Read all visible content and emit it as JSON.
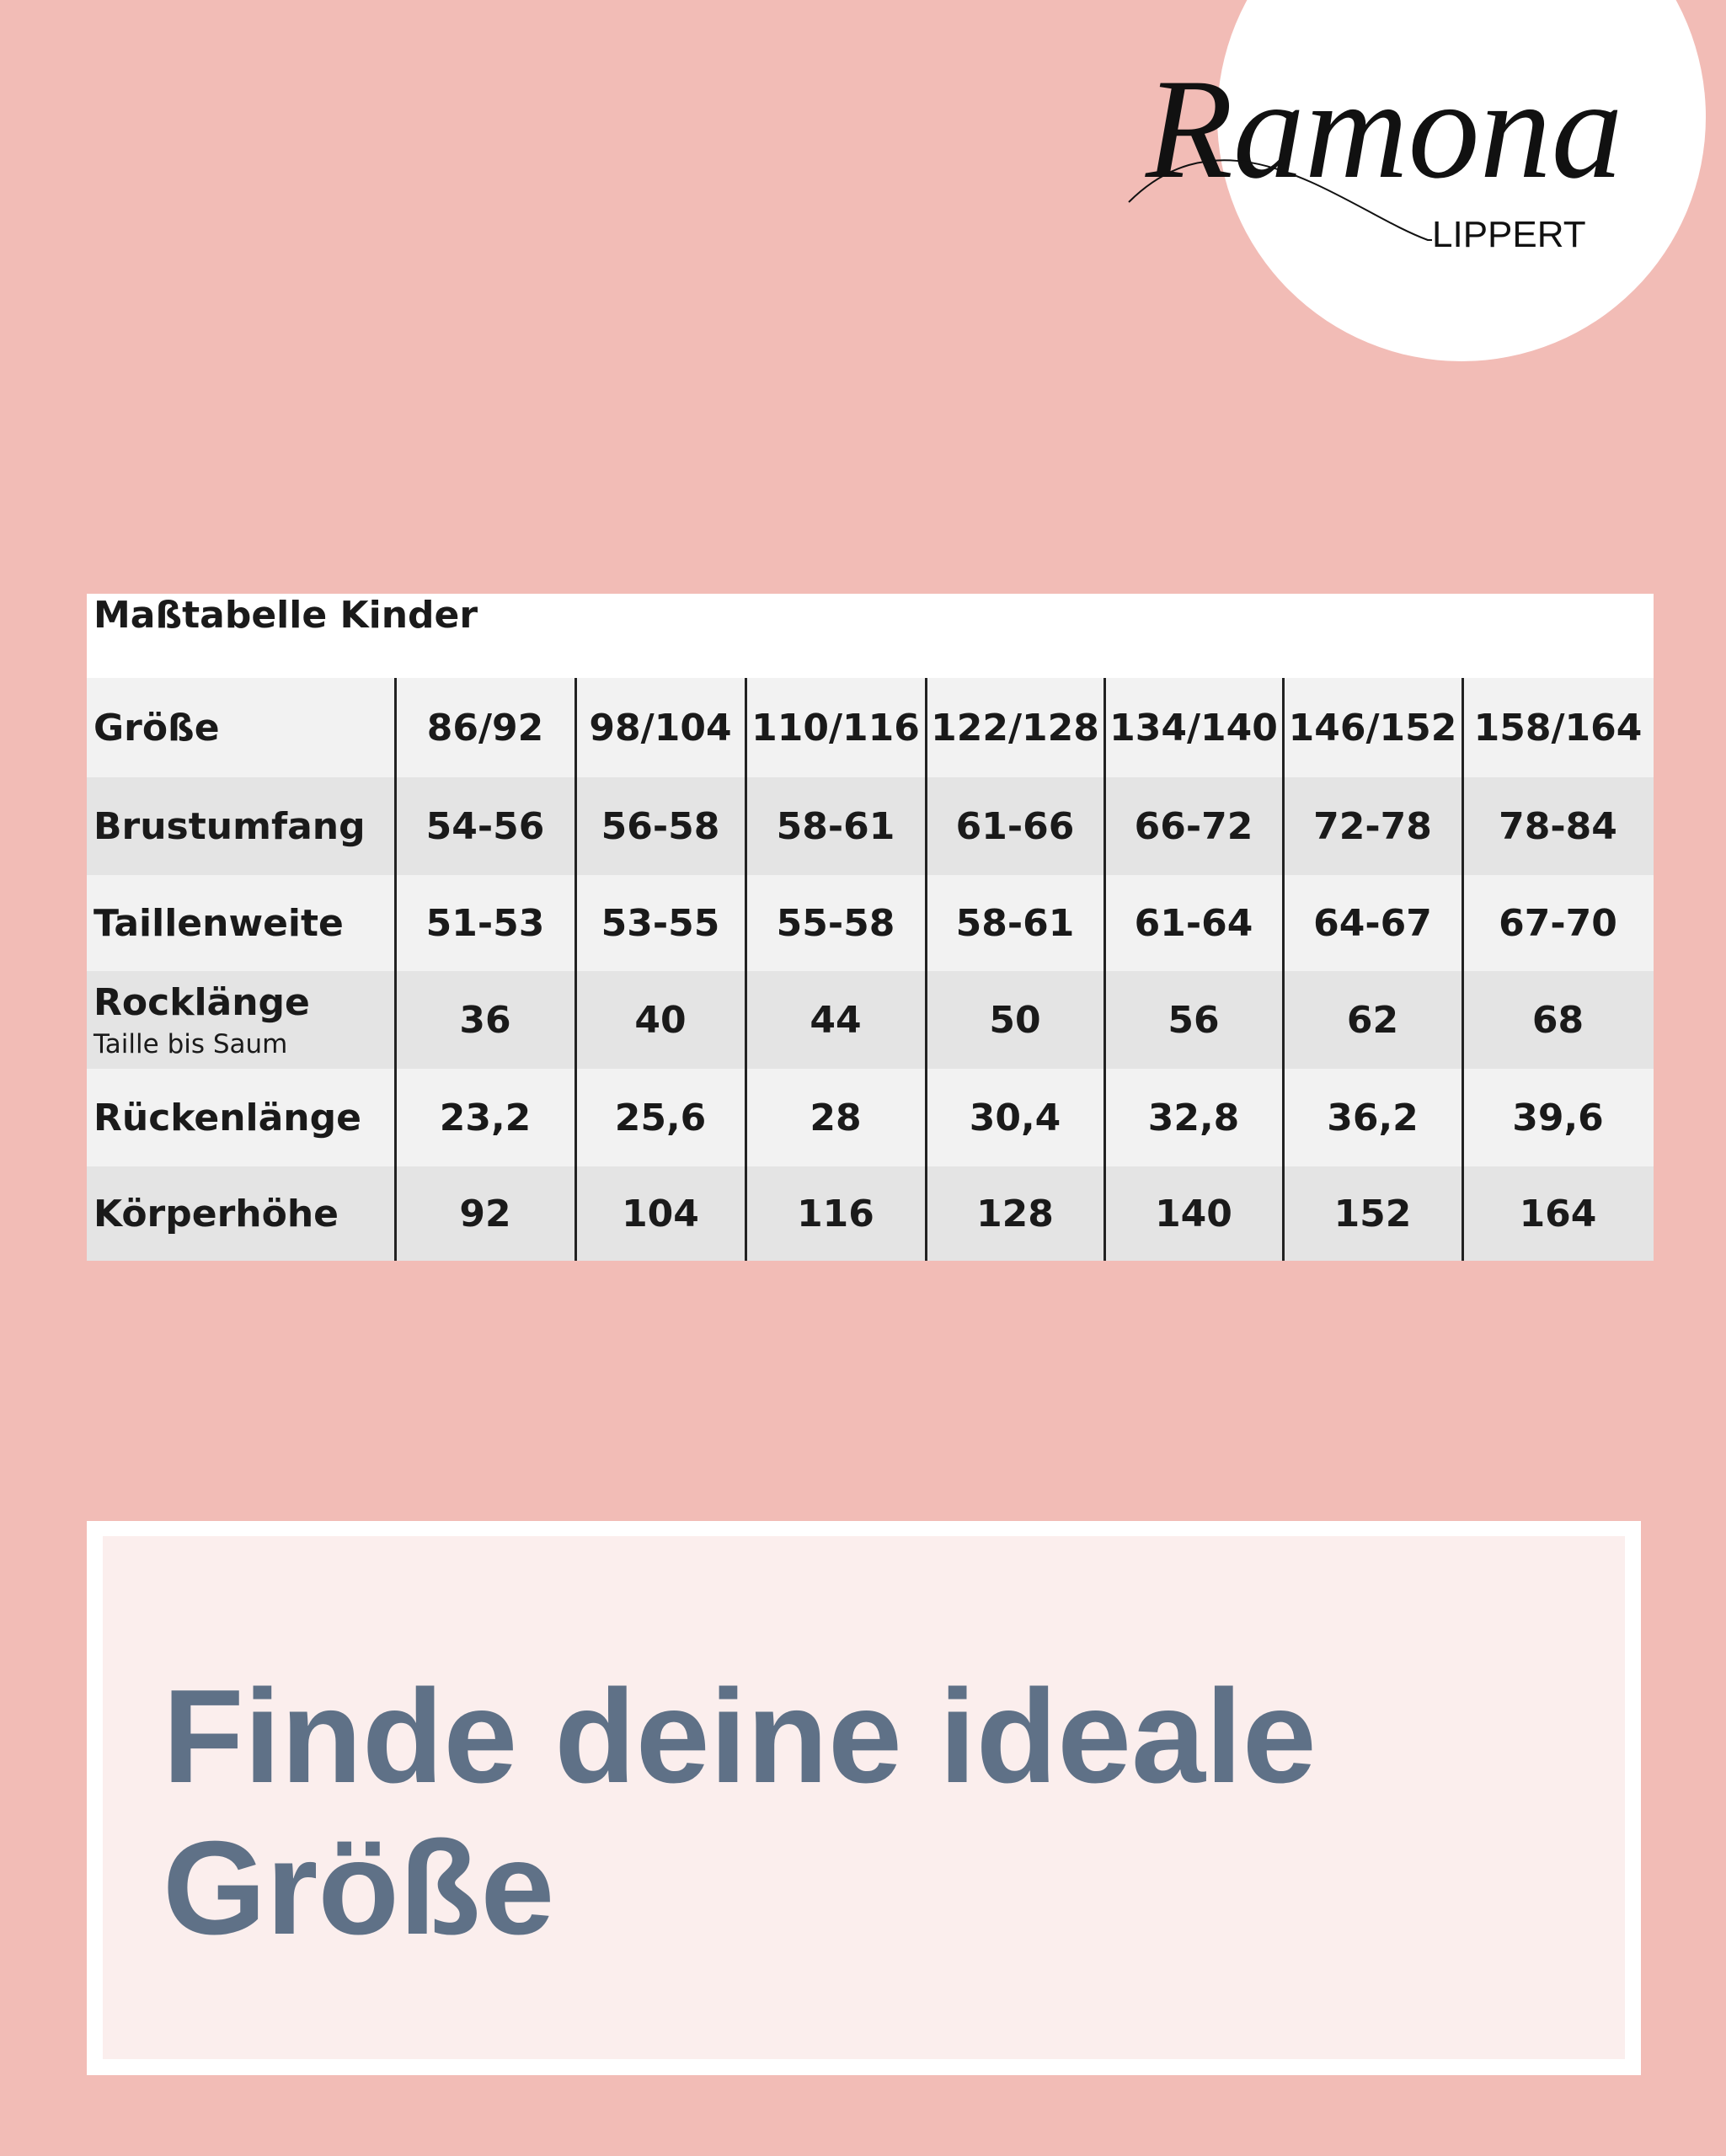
{
  "logo": {
    "name": "Ramona",
    "surname": "LIPPERT"
  },
  "table": {
    "title": "Maßtabelle Kinder",
    "header": {
      "label": "Größe",
      "values": [
        "86/92",
        "98/104",
        "110/116",
        "122/128",
        "134/140",
        "146/152",
        "158/164"
      ]
    },
    "rows": [
      {
        "label": "Brustumfang",
        "values": [
          "54-56",
          "56-58",
          "58-61",
          "61-66",
          "66-72",
          "72-78",
          "78-84"
        ]
      },
      {
        "label": "Taillenweite",
        "values": [
          "51-53",
          "53-55",
          "55-58",
          "58-61",
          "61-64",
          "64-67",
          "67-70"
        ]
      },
      {
        "label": "Rocklänge",
        "sublabel": "Taille bis Saum",
        "values": [
          "36",
          "40",
          "44",
          "50",
          "56",
          "62",
          "68"
        ]
      },
      {
        "label": "Rückenlänge",
        "values": [
          "23,2",
          "25,6",
          "28",
          "30,4",
          "32,8",
          "36,2",
          "39,6"
        ]
      },
      {
        "label": "Körperhöhe",
        "values": [
          "92",
          "104",
          "116",
          "128",
          "140",
          "152",
          "164"
        ]
      }
    ]
  },
  "banner": {
    "lines": [
      "Finde deine ideale",
      "Größe"
    ]
  }
}
